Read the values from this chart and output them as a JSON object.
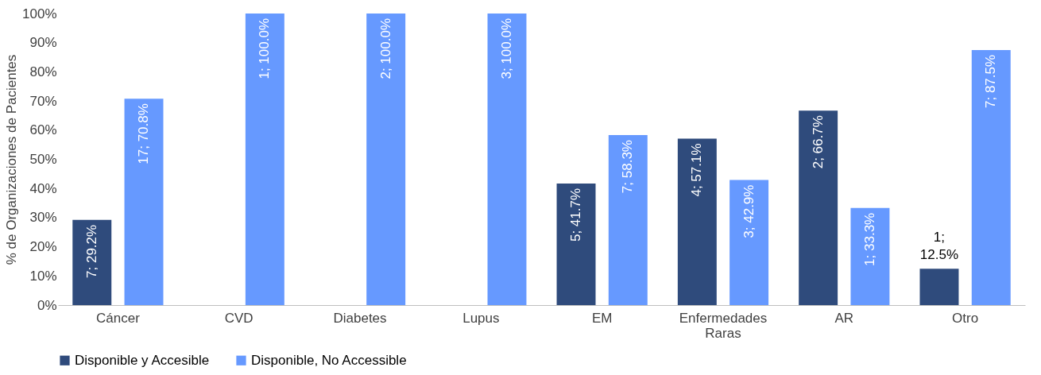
{
  "chart_data": {
    "type": "bar",
    "ylabel": "% de Organizaciones de Pacientes",
    "categories": [
      "Cáncer",
      "CVD",
      "Diabetes",
      "Lupus",
      "EM",
      "Enfermedades Raras",
      "AR",
      "Otro"
    ],
    "series": [
      {
        "name": "Disponible y Accesible",
        "color": "#2f4b7c",
        "values": [
          29.2,
          null,
          null,
          null,
          41.7,
          57.1,
          66.7,
          12.5
        ],
        "value_labels": [
          "7; 29.2%",
          null,
          null,
          null,
          "5; 41.7%",
          "4; 57.1%",
          "2; 66.7%",
          "1; 12.5%"
        ]
      },
      {
        "name": "Disponible, No Accessible",
        "color": "#6699ff",
        "values": [
          70.8,
          100,
          100,
          100,
          58.3,
          42.9,
          33.3,
          87.5
        ],
        "value_labels": [
          "17; 70.8%",
          "1; 100.0%",
          "2; 100.0%",
          "3; 100.0%",
          "7; 58.3%",
          "3; 42.9%",
          "1; 33.3%",
          "7; 87.5%"
        ]
      }
    ],
    "ylim": [
      0,
      100
    ],
    "yticks": [
      {
        "value": 0,
        "label": "0%"
      },
      {
        "value": 10,
        "label": "10%"
      },
      {
        "value": 20,
        "label": "20%"
      },
      {
        "value": 30,
        "label": "30%"
      },
      {
        "value": 40,
        "label": "40%"
      },
      {
        "value": 50,
        "label": "50%"
      },
      {
        "value": 60,
        "label": "60%"
      },
      {
        "value": 70,
        "label": "70%"
      },
      {
        "value": 80,
        "label": "80%"
      },
      {
        "value": 90,
        "label": "90%"
      },
      {
        "value": 100,
        "label": "100%"
      }
    ],
    "grid": false,
    "legend": "bottom"
  }
}
